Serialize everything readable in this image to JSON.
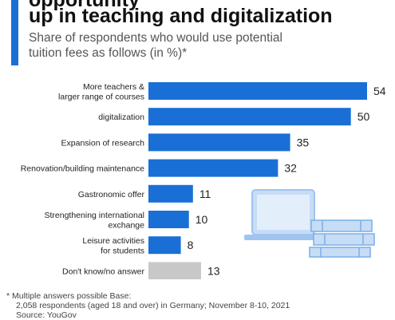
{
  "header": {
    "title_line1": "opportunity",
    "title_line2": "up in teaching and digitalization",
    "subtitle_line1": "Share of respondents who would use potential",
    "subtitle_line2": "tuition fees as follows (in %)*"
  },
  "footnote": {
    "line1": "* Multiple answers possible Base:",
    "line2": "2,058 respondents (aged 18 and over) in Germany; November 8-10, 2021",
    "line3": "Source: YouGov"
  },
  "colors": {
    "accent": "#1a6fd6",
    "bar": "#1a6fd6",
    "bar_other": "#c8c8c8",
    "illustration_light": "#c7dcf5",
    "illustration_mid": "#9fc4ef"
  },
  "chart_data": {
    "type": "bar",
    "orientation": "horizontal",
    "categories": [
      [
        "More teachers &",
        "larger range of courses"
      ],
      [
        "digitalization"
      ],
      [
        "Expansion of research"
      ],
      [
        "Renovation/building maintenance"
      ],
      [
        "Gastronomic offer"
      ],
      [
        "Strengthening international",
        "exchange"
      ],
      [
        "Leisure activities",
        "for students"
      ],
      [
        "Don't know/no answer"
      ]
    ],
    "values": [
      54,
      50,
      35,
      32,
      11,
      10,
      8,
      13
    ],
    "bar_colors": [
      "#1a6fd6",
      "#1a6fd6",
      "#1a6fd6",
      "#1a6fd6",
      "#1a6fd6",
      "#1a6fd6",
      "#1a6fd6",
      "#c8c8c8"
    ],
    "xlim": [
      0,
      54
    ],
    "grid": false,
    "legend": "none"
  }
}
